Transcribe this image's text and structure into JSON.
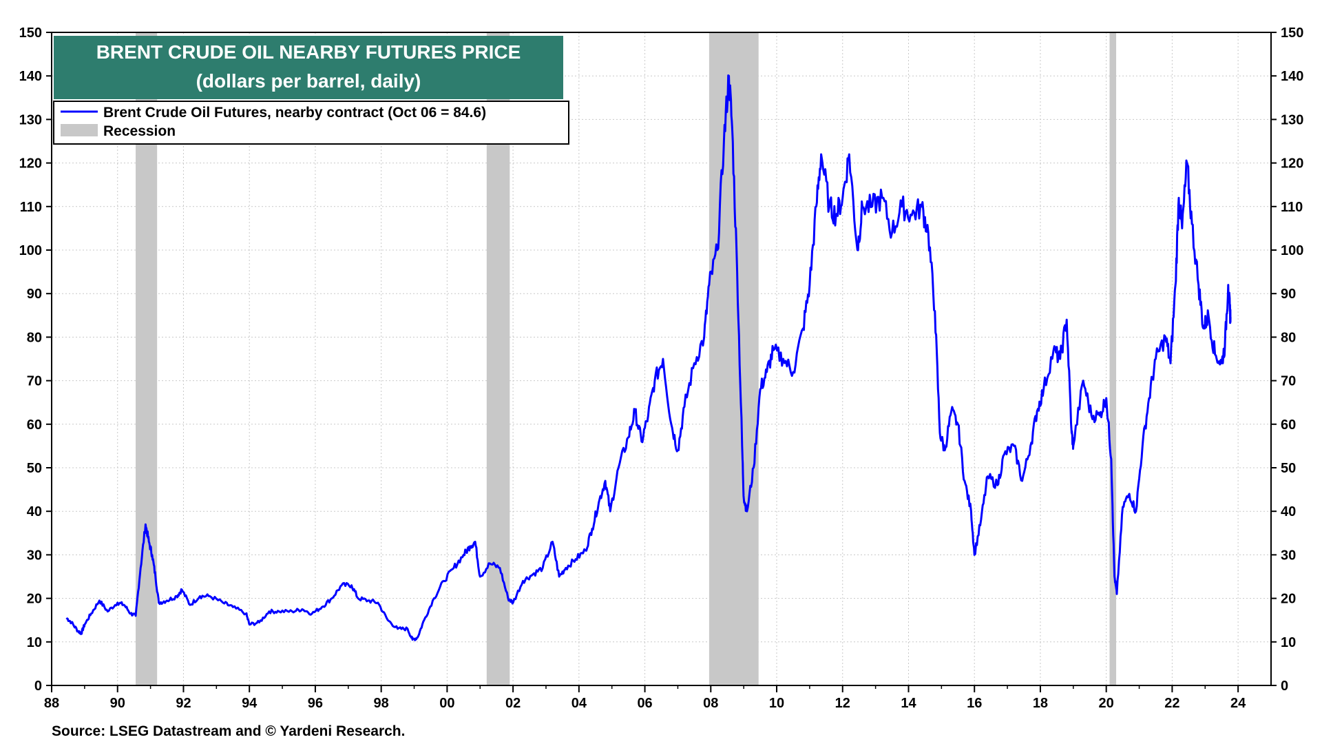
{
  "chart_data": {
    "type": "line",
    "title": "BRENT CRUDE OIL NEARBY FUTURES PRICE",
    "subtitle": "(dollars per barrel, daily)",
    "ylim": [
      0,
      150
    ],
    "xlim": [
      1988,
      2025
    ],
    "y_ticks": [
      0,
      10,
      20,
      30,
      40,
      50,
      60,
      70,
      80,
      90,
      100,
      110,
      120,
      130,
      140,
      150
    ],
    "x_ticks": [
      {
        "value": 1988,
        "label": "88"
      },
      {
        "value": 1990,
        "label": "90"
      },
      {
        "value": 1992,
        "label": "92"
      },
      {
        "value": 1994,
        "label": "94"
      },
      {
        "value": 1996,
        "label": "96"
      },
      {
        "value": 1998,
        "label": "98"
      },
      {
        "value": 2000,
        "label": "00"
      },
      {
        "value": 2002,
        "label": "02"
      },
      {
        "value": 2004,
        "label": "04"
      },
      {
        "value": 2006,
        "label": "06"
      },
      {
        "value": 2008,
        "label": "08"
      },
      {
        "value": 2010,
        "label": "10"
      },
      {
        "value": 2012,
        "label": "12"
      },
      {
        "value": 2014,
        "label": "14"
      },
      {
        "value": 2016,
        "label": "16"
      },
      {
        "value": 2018,
        "label": "18"
      },
      {
        "value": 2020,
        "label": "20"
      },
      {
        "value": 2022,
        "label": "22"
      },
      {
        "value": 2024,
        "label": "24"
      }
    ],
    "grid": true,
    "legend": [
      {
        "label": "Brent Crude Oil Futures, nearby contract (Oct 06 = 84.6)",
        "kind": "line",
        "color": "#0000ff"
      },
      {
        "label": "Recession",
        "kind": "band",
        "color": "#c8c8c8"
      }
    ],
    "recessions": [
      [
        1990.55,
        1991.2
      ],
      [
        2001.2,
        2001.9
      ],
      [
        2007.95,
        2009.45
      ],
      [
        2020.1,
        2020.3
      ]
    ],
    "series": [
      {
        "name": "Brent Crude Oil Futures, nearby contract",
        "color": "#0000ff",
        "points": [
          [
            1988.45,
            15.5
          ],
          [
            1988.6,
            14.5
          ],
          [
            1988.8,
            12.5
          ],
          [
            1988.9,
            12
          ],
          [
            1989.0,
            14
          ],
          [
            1989.2,
            16.5
          ],
          [
            1989.45,
            19.5
          ],
          [
            1989.7,
            17
          ],
          [
            1990.0,
            19
          ],
          [
            1990.2,
            18.5
          ],
          [
            1990.4,
            16.5
          ],
          [
            1990.55,
            16
          ],
          [
            1990.7,
            27
          ],
          [
            1990.85,
            37
          ],
          [
            1990.95,
            33
          ],
          [
            1991.05,
            30
          ],
          [
            1991.15,
            25
          ],
          [
            1991.25,
            19
          ],
          [
            1991.5,
            19.5
          ],
          [
            1991.8,
            20.5
          ],
          [
            1991.95,
            22
          ],
          [
            1992.2,
            18.5
          ],
          [
            1992.5,
            20.5
          ],
          [
            1992.8,
            20.5
          ],
          [
            1993.2,
            19
          ],
          [
            1993.5,
            18
          ],
          [
            1993.9,
            16.5
          ],
          [
            1994.0,
            14
          ],
          [
            1994.3,
            14.5
          ],
          [
            1994.6,
            17
          ],
          [
            1994.9,
            17
          ],
          [
            1995.3,
            17
          ],
          [
            1995.6,
            17.5
          ],
          [
            1995.9,
            16.5
          ],
          [
            1996.2,
            18
          ],
          [
            1996.5,
            20
          ],
          [
            1996.8,
            23
          ],
          [
            1997.1,
            23
          ],
          [
            1997.3,
            20
          ],
          [
            1997.6,
            19.5
          ],
          [
            1997.9,
            19
          ],
          [
            1998.2,
            15
          ],
          [
            1998.5,
            13
          ],
          [
            1998.8,
            13
          ],
          [
            1998.95,
            10.5
          ],
          [
            1999.1,
            11
          ],
          [
            1999.3,
            15
          ],
          [
            1999.6,
            20
          ],
          [
            1999.9,
            24
          ],
          [
            2000.2,
            27
          ],
          [
            2000.5,
            30
          ],
          [
            2000.7,
            32
          ],
          [
            2000.85,
            33
          ],
          [
            2001.0,
            25
          ],
          [
            2001.3,
            28
          ],
          [
            2001.6,
            27
          ],
          [
            2001.85,
            20
          ],
          [
            2002.0,
            19
          ],
          [
            2002.3,
            24
          ],
          [
            2002.6,
            25.5
          ],
          [
            2002.9,
            27
          ],
          [
            2003.2,
            33
          ],
          [
            2003.4,
            25
          ],
          [
            2003.6,
            27
          ],
          [
            2003.9,
            29
          ],
          [
            2004.2,
            31
          ],
          [
            2004.4,
            36
          ],
          [
            2004.6,
            42
          ],
          [
            2004.8,
            47
          ],
          [
            2004.95,
            40
          ],
          [
            2005.2,
            50
          ],
          [
            2005.5,
            57
          ],
          [
            2005.7,
            63
          ],
          [
            2005.9,
            56
          ],
          [
            2006.1,
            62
          ],
          [
            2006.3,
            70
          ],
          [
            2006.55,
            75
          ],
          [
            2006.8,
            60
          ],
          [
            2007.0,
            54
          ],
          [
            2007.2,
            64
          ],
          [
            2007.5,
            74
          ],
          [
            2007.8,
            80
          ],
          [
            2007.95,
            92
          ],
          [
            2008.2,
            100
          ],
          [
            2008.4,
            125
          ],
          [
            2008.55,
            140
          ],
          [
            2008.65,
            128
          ],
          [
            2008.8,
            95
          ],
          [
            2008.95,
            55
          ],
          [
            2009.0,
            43
          ],
          [
            2009.1,
            40
          ],
          [
            2009.3,
            50
          ],
          [
            2009.5,
            68
          ],
          [
            2009.7,
            72
          ],
          [
            2009.9,
            77
          ],
          [
            2010.2,
            75
          ],
          [
            2010.5,
            72
          ],
          [
            2010.8,
            82
          ],
          [
            2011.0,
            92
          ],
          [
            2011.2,
            110
          ],
          [
            2011.35,
            122
          ],
          [
            2011.6,
            110
          ],
          [
            2011.8,
            108
          ],
          [
            2012.0,
            112
          ],
          [
            2012.2,
            122
          ],
          [
            2012.45,
            100
          ],
          [
            2012.6,
            110
          ],
          [
            2012.9,
            110
          ],
          [
            2013.2,
            112
          ],
          [
            2013.5,
            104
          ],
          [
            2013.8,
            110
          ],
          [
            2014.1,
            108
          ],
          [
            2014.4,
            110
          ],
          [
            2014.6,
            104
          ],
          [
            2014.8,
            86
          ],
          [
            2014.95,
            58
          ],
          [
            2015.1,
            54
          ],
          [
            2015.3,
            63
          ],
          [
            2015.5,
            60
          ],
          [
            2015.7,
            47
          ],
          [
            2015.9,
            40
          ],
          [
            2016.0,
            30
          ],
          [
            2016.2,
            38
          ],
          [
            2016.4,
            48
          ],
          [
            2016.7,
            46
          ],
          [
            2016.9,
            53
          ],
          [
            2017.2,
            55
          ],
          [
            2017.45,
            47
          ],
          [
            2017.7,
            55
          ],
          [
            2017.9,
            63
          ],
          [
            2018.1,
            68
          ],
          [
            2018.4,
            77
          ],
          [
            2018.6,
            75
          ],
          [
            2018.8,
            84
          ],
          [
            2018.95,
            58
          ],
          [
            2019.0,
            55
          ],
          [
            2019.3,
            70
          ],
          [
            2019.55,
            62
          ],
          [
            2019.8,
            62
          ],
          [
            2020.0,
            66
          ],
          [
            2020.15,
            52
          ],
          [
            2020.25,
            25
          ],
          [
            2020.32,
            21
          ],
          [
            2020.5,
            41
          ],
          [
            2020.7,
            44
          ],
          [
            2020.9,
            40
          ],
          [
            2021.1,
            55
          ],
          [
            2021.3,
            66
          ],
          [
            2021.5,
            75
          ],
          [
            2021.8,
            80
          ],
          [
            2021.95,
            74
          ],
          [
            2022.1,
            92
          ],
          [
            2022.2,
            112
          ],
          [
            2022.3,
            105
          ],
          [
            2022.45,
            120
          ],
          [
            2022.6,
            106
          ],
          [
            2022.8,
            92
          ],
          [
            2022.95,
            82
          ],
          [
            2023.1,
            85
          ],
          [
            2023.3,
            76
          ],
          [
            2023.5,
            74
          ],
          [
            2023.6,
            78
          ],
          [
            2023.7,
            92
          ],
          [
            2023.75,
            86
          ],
          [
            2023.77,
            84.6
          ]
        ]
      }
    ]
  },
  "source": "Source: LSEG Datastream and © Yardeni Research."
}
